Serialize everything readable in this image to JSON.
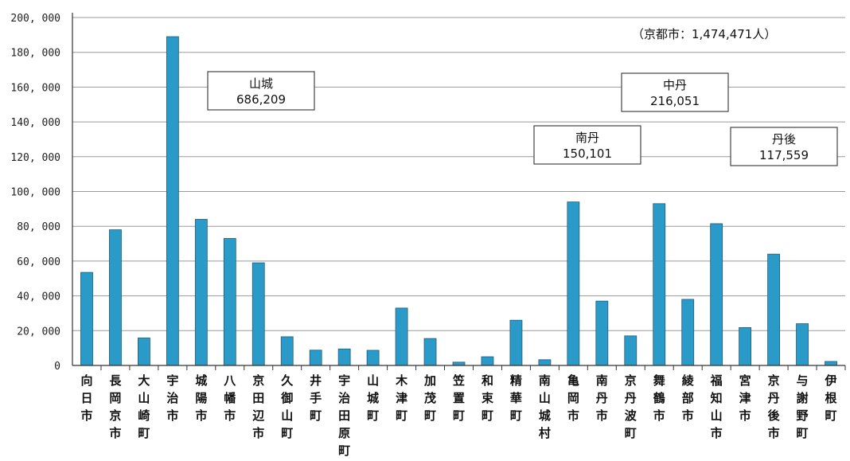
{
  "chart_data": {
    "type": "bar",
    "title": "",
    "xlabel": "",
    "ylabel": "",
    "ylim": [
      0,
      200000
    ],
    "yticks": [
      0,
      20000,
      40000,
      60000,
      80000,
      100000,
      120000,
      140000,
      160000,
      180000,
      200000
    ],
    "ytick_labels": [
      "0",
      "20, 000",
      "40, 000",
      "60, 000",
      "80, 000",
      "100, 000",
      "120, 000",
      "140, 000",
      "160, 000",
      "180, 000",
      "200, 000"
    ],
    "grid": true,
    "bar_color": "#2a9bc9",
    "categories": [
      "向日市",
      "長岡京市",
      "大山崎町",
      "宇治市",
      "城陽市",
      "八幡市",
      "京田辺市",
      "久御山町",
      "井手町",
      "宇治田原町",
      "山城町",
      "木津町",
      "加茂町",
      "笠置町",
      "和束町",
      "精華町",
      "南山城村",
      "亀岡市",
      "南丹市",
      "京丹波町",
      "舞鶴市",
      "綾部市",
      "福知山市",
      "宮津市",
      "京丹後市",
      "与謝野町",
      "伊根町"
    ],
    "values": [
      53500,
      78000,
      15800,
      189000,
      84000,
      73000,
      59000,
      16500,
      8800,
      9500,
      8700,
      33000,
      15500,
      1900,
      5000,
      26000,
      3300,
      94000,
      37000,
      17000,
      93000,
      38000,
      81500,
      21800,
      64000,
      24000,
      2300
    ],
    "annotations": [
      {
        "label": "山城",
        "value": "686,209"
      },
      {
        "label": "中丹",
        "value": "216,051"
      },
      {
        "label": "南丹",
        "value": "150,101"
      },
      {
        "label": "丹後",
        "value": "117,559"
      }
    ],
    "note": "（京都市：1,474,471人）"
  }
}
